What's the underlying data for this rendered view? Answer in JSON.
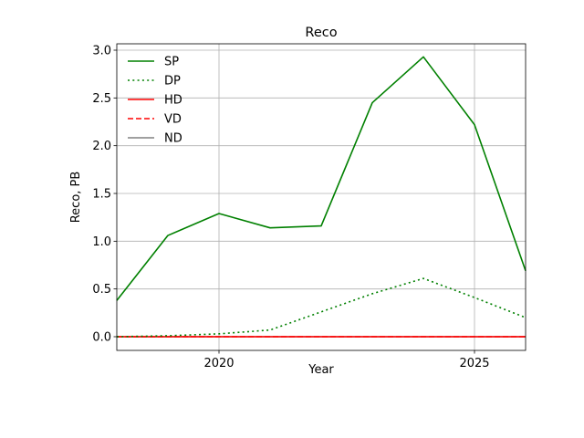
{
  "chart_data": {
    "type": "line",
    "title": "Reco",
    "xlabel": "Year",
    "ylabel": "Reco, PB",
    "xlim": [
      2018,
      2026
    ],
    "ylim": [
      0,
      3.06
    ],
    "x_ticks": [
      2020,
      2025
    ],
    "y_ticks": [
      "0.0",
      "0.5",
      "1.0",
      "1.5",
      "2.0",
      "2.5",
      "3.0"
    ],
    "grid": true,
    "legend_position": "top-left",
    "x": [
      2018,
      2019,
      2020,
      2021,
      2022,
      2023,
      2024,
      2025,
      2026
    ],
    "series": [
      {
        "name": "SP",
        "color": "#008000",
        "dash": "solid",
        "values": [
          0.38,
          1.06,
          1.29,
          1.14,
          1.16,
          2.45,
          2.93,
          2.22,
          0.69
        ]
      },
      {
        "name": "DP",
        "color": "#008000",
        "dash": "dotted",
        "values": [
          0.0,
          0.01,
          0.03,
          0.07,
          0.26,
          0.45,
          0.61,
          0.41,
          0.2
        ]
      },
      {
        "name": "HD",
        "color": "#ff0000",
        "dash": "solid",
        "values": [
          0,
          0,
          0,
          0,
          0,
          0,
          0,
          0,
          0
        ]
      },
      {
        "name": "VD",
        "color": "#ff0000",
        "dash": "dashed",
        "values": [
          0,
          0,
          0,
          0,
          0,
          0,
          0,
          0,
          0
        ]
      },
      {
        "name": "ND",
        "color": "#808080",
        "dash": "solid",
        "values": [
          0,
          0,
          0,
          0,
          0,
          0,
          0,
          0,
          0
        ]
      }
    ]
  }
}
